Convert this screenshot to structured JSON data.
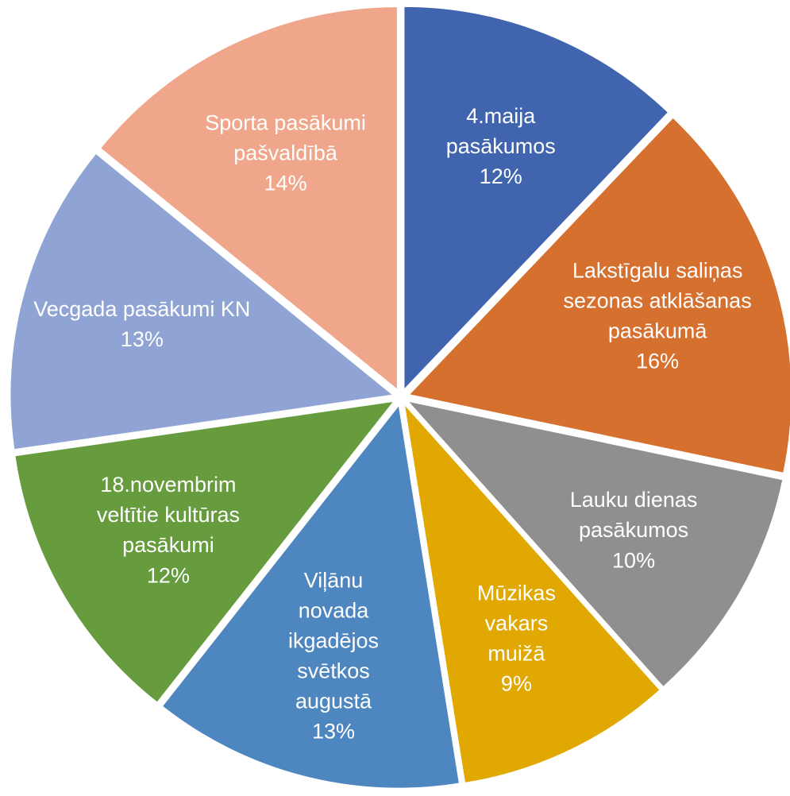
{
  "chart_data": {
    "type": "pie",
    "categories": [
      "4.maija pasākumos",
      "Lakstīgalu saliņas sezonas atklāšanas pasākumā",
      "Lauku dienas pasākumos",
      "Mūzikas vakars muižā",
      "Viļānu novada ikgadējos svētkos augustā",
      "18.novembrim veltītie kultūras pasākumi",
      "Vecgada pasākumi KN",
      "Sporta pasākumi pašvaldībā"
    ],
    "values": [
      12,
      16,
      10,
      9,
      13,
      12,
      13,
      14
    ],
    "value_labels": [
      "12%",
      "16%",
      "10%",
      "9%",
      "13%",
      "12%",
      "13%",
      "14%"
    ],
    "colors": [
      "#4064ae",
      "#d5702f",
      "#8f8f8f",
      "#e0a800",
      "#4e86bf",
      "#669b3e",
      "#8fa3d4",
      "#f0a68a"
    ]
  }
}
